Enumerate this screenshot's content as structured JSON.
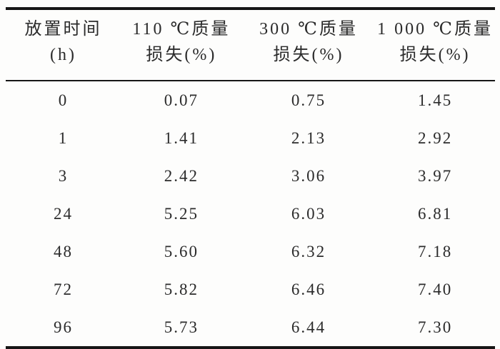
{
  "colors": {
    "background": "#fdfdfc",
    "rule": "#161616",
    "text": "#2b2b2b"
  },
  "table": {
    "header": [
      {
        "line1": "放置时间",
        "line2": "(h)"
      },
      {
        "line1": "110 ℃质量",
        "line2": "损失(%)"
      },
      {
        "line1": "300 ℃质量",
        "line2": "损失(%)"
      },
      {
        "line1": "1 000 ℃质量",
        "line2": "损失(%)"
      }
    ],
    "rows": [
      [
        "0",
        "0.07",
        "0.75",
        "1.45"
      ],
      [
        "1",
        "1.41",
        "2.13",
        "2.92"
      ],
      [
        "3",
        "2.42",
        "3.06",
        "3.97"
      ],
      [
        "24",
        "5.25",
        "6.03",
        "6.81"
      ],
      [
        "48",
        "5.60",
        "6.32",
        "7.18"
      ],
      [
        "72",
        "5.82",
        "6.46",
        "7.40"
      ],
      [
        "96",
        "5.73",
        "6.44",
        "7.30"
      ]
    ]
  },
  "chart_data": {
    "type": "table",
    "columns": [
      "放置时间 (h)",
      "110 ℃质量损失(%)",
      "300 ℃质量损失(%)",
      "1 000 ℃质量损失(%)"
    ],
    "rows": [
      [
        0,
        0.07,
        0.75,
        1.45
      ],
      [
        1,
        1.41,
        2.13,
        2.92
      ],
      [
        3,
        2.42,
        3.06,
        3.97
      ],
      [
        24,
        5.25,
        6.03,
        6.81
      ],
      [
        48,
        5.6,
        6.32,
        7.18
      ],
      [
        72,
        5.82,
        6.46,
        7.4
      ],
      [
        96,
        5.73,
        6.44,
        7.3
      ]
    ]
  }
}
